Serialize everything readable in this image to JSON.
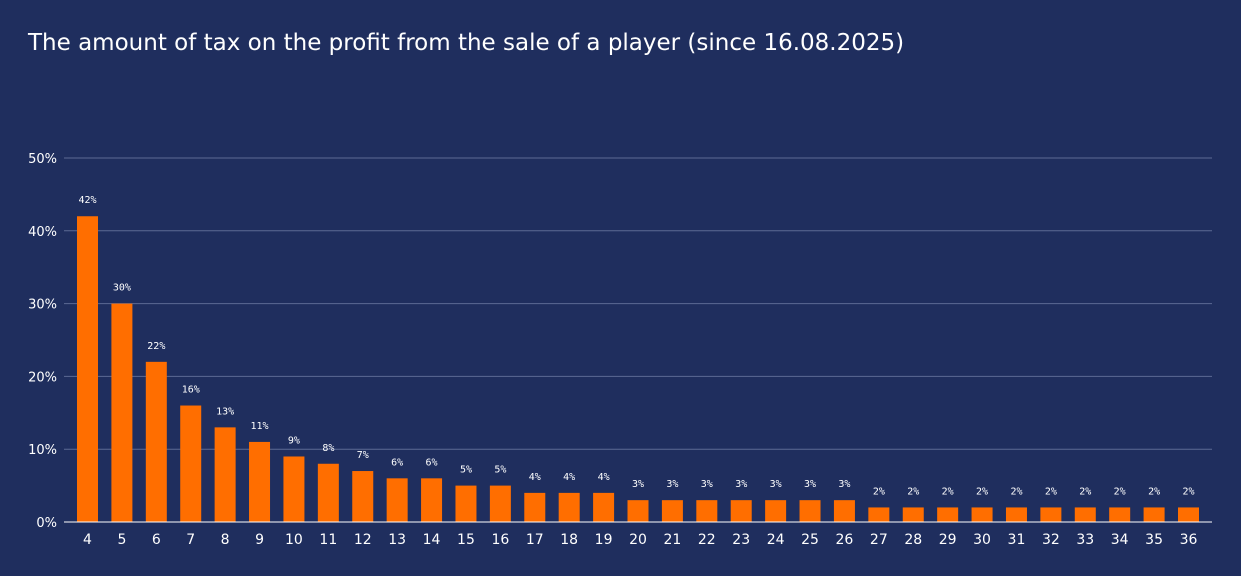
{
  "colors": {
    "background": "#1f2e5e",
    "bar": "#ff6e00",
    "grid": "#5d6a94",
    "axis": "#ffffff",
    "text": "#ffffff"
  },
  "chart_data": {
    "type": "bar",
    "title": "The amount of tax on the profit from the sale of a player (since 16.08.2025)",
    "xlabel": "",
    "ylabel": "",
    "ylim": [
      0,
      50
    ],
    "y_ticks": [
      0,
      10,
      20,
      30,
      40,
      50
    ],
    "y_tick_labels": [
      "0%",
      "10%",
      "20%",
      "30%",
      "40%",
      "50%"
    ],
    "grid": true,
    "legend": "none",
    "categories": [
      "4",
      "5",
      "6",
      "7",
      "8",
      "9",
      "10",
      "11",
      "12",
      "13",
      "14",
      "15",
      "16",
      "17",
      "18",
      "19",
      "20",
      "21",
      "22",
      "23",
      "24",
      "25",
      "26",
      "27",
      "28",
      "29",
      "30",
      "31",
      "32",
      "33",
      "34",
      "35",
      "36"
    ],
    "values": [
      42,
      30,
      22,
      16,
      13,
      11,
      9,
      8,
      7,
      6,
      6,
      5,
      5,
      4,
      4,
      4,
      3,
      3,
      3,
      3,
      3,
      3,
      3,
      2,
      2,
      2,
      2,
      2,
      2,
      2,
      2,
      2,
      2
    ],
    "data_labels": [
      "42%",
      "30%",
      "22%",
      "16%",
      "13%",
      "11%",
      "9%",
      "8%",
      "7%",
      "6%",
      "6%",
      "5%",
      "5%",
      "4%",
      "4%",
      "4%",
      "3%",
      "3%",
      "3%",
      "3%",
      "3%",
      "3%",
      "3%",
      "2%",
      "2%",
      "2%",
      "2%",
      "2%",
      "2%",
      "2%",
      "2%",
      "2%",
      "2%"
    ]
  }
}
